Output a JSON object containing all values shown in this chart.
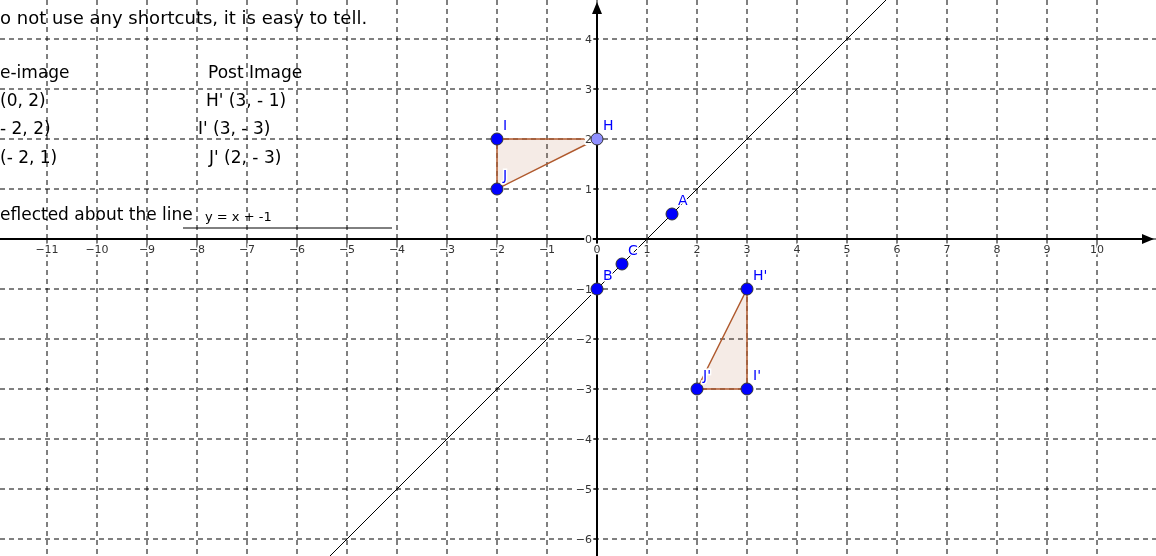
{
  "chart_data": {
    "type": "scatter",
    "xlim": [
      -11.94,
      11.18
    ],
    "ylim": [
      -6.34,
      4.78
    ],
    "xticks": [
      -11,
      -10,
      -9,
      -8,
      -7,
      -6,
      -5,
      -4,
      -3,
      -2,
      -1,
      0,
      1,
      2,
      3,
      4,
      5,
      6,
      7,
      8,
      9,
      10
    ],
    "yticks": [
      -6,
      -5,
      -4,
      -3,
      -2,
      -1,
      0,
      1,
      2,
      3,
      4
    ],
    "grid": true,
    "series": [
      {
        "type": "area",
        "color": "#b05a2e",
        "x": [
          -2,
          -2,
          0,
          -2
        ],
        "values": [
          2,
          1,
          2,
          2
        ]
      },
      {
        "type": "area",
        "color": "#b05a2e",
        "x": [
          3,
          3,
          2,
          3
        ],
        "values": [
          -1,
          -3,
          -3,
          -1
        ]
      },
      {
        "type": "line",
        "color": "#000000",
        "x": [
          -5.34,
          5.78
        ],
        "values": [
          -6.34,
          4.78
        ]
      },
      {
        "marker": "circle",
        "color": "#0000ff",
        "colors": [
          "#0000ff",
          "#0000ff",
          "#0000ff",
          "#0000ff",
          "#0000ff",
          "#8f8fff",
          "#0000ff",
          "#0000ff",
          "#0000ff"
        ],
        "x": [
          1.5,
          0,
          0.5,
          -2,
          -2,
          0,
          3,
          3,
          2
        ],
        "values": [
          0.5,
          -1,
          -0.5,
          2,
          1,
          2,
          -1,
          -3,
          -3
        ]
      }
    ],
    "annotations": [
      "o not use any shortcuts, it is easy to tell.",
      "e-image",
      "Post Image",
      "(0, 2)",
      "H' (3, - 1)",
      "- 2, 2)",
      "I' (3, - 3)",
      "(- 2, 1)",
      "J' (2, - 3)",
      "eflected about the line",
      "y = x + -1",
      {
        "text": "A",
        "x": 1.5,
        "y": 0.5
      },
      {
        "text": "B",
        "x": 0,
        "y": -1
      },
      {
        "text": "C",
        "x": 0.5,
        "y": -0.5
      },
      {
        "text": "I",
        "x": -2,
        "y": 2
      },
      {
        "text": "J",
        "x": -2,
        "y": 1
      },
      {
        "text": "H",
        "x": 0,
        "y": 2
      },
      {
        "text": "H'",
        "x": 3,
        "y": -1
      },
      {
        "text": "I'",
        "x": 3,
        "y": -3
      },
      {
        "text": "J'",
        "x": 2,
        "y": -3
      }
    ]
  }
}
